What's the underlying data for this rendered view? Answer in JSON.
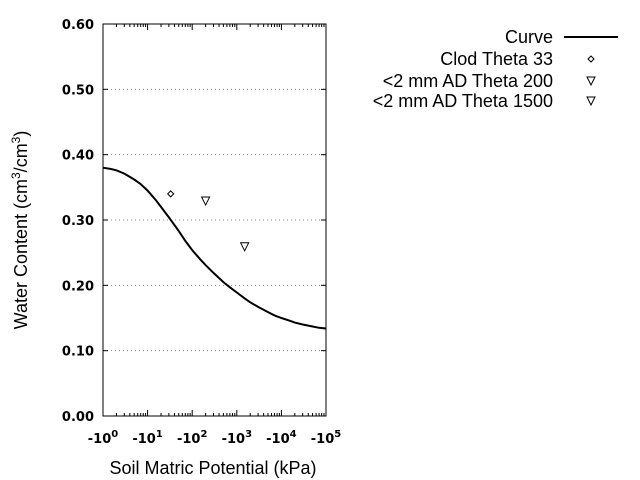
{
  "chart_data": {
    "type": "line",
    "xlabel": "Soil Matric Potential (kPa)",
    "ylabel_main": "Water Content (cm",
    "ylabel_sup1": "3",
    "ylabel_mid": "/cm",
    "ylabel_sup2": "3",
    "ylabel_end": ")",
    "x_scale": "log",
    "x_range": [
      1,
      100000
    ],
    "ylim": [
      0,
      0.6
    ],
    "grid": "horizontal dotted",
    "legend_position": "top-right",
    "y_ticks": [
      "0.00",
      "0.10",
      "0.20",
      "0.30",
      "0.40",
      "0.50",
      "0.60"
    ],
    "x_ticks": [
      {
        "base": "-10",
        "exp": "0",
        "value": 1
      },
      {
        "base": "-10",
        "exp": "1",
        "value": 10
      },
      {
        "base": "-10",
        "exp": "2",
        "value": 100
      },
      {
        "base": "-10",
        "exp": "3",
        "value": 1000
      },
      {
        "base": "-10",
        "exp": "4",
        "value": 10000
      },
      {
        "base": "-10",
        "exp": "5",
        "value": 100000
      }
    ],
    "series": [
      {
        "name": "Curve",
        "kind": "line",
        "x": [
          1,
          1.5,
          2,
          3,
          5,
          7,
          10,
          15,
          20,
          30,
          50,
          70,
          100,
          150,
          200,
          300,
          500,
          700,
          1000,
          1500,
          2000,
          3000,
          5000,
          7000,
          10000,
          15000,
          20000,
          30000,
          50000,
          70000,
          100000
        ],
        "y": [
          0.38,
          0.378,
          0.376,
          0.371,
          0.362,
          0.355,
          0.345,
          0.331,
          0.32,
          0.304,
          0.283,
          0.268,
          0.254,
          0.24,
          0.231,
          0.219,
          0.205,
          0.197,
          0.189,
          0.18,
          0.174,
          0.167,
          0.159,
          0.154,
          0.15,
          0.146,
          0.143,
          0.14,
          0.137,
          0.135,
          0.134
        ]
      },
      {
        "name": "Clod Theta 33",
        "kind": "marker",
        "marker": "diamond",
        "x": [
          33
        ],
        "y": [
          0.34
        ]
      },
      {
        "name": "<2 mm AD Theta 200",
        "kind": "marker",
        "marker": "triangle-down",
        "x": [
          200
        ],
        "y": [
          0.329
        ]
      },
      {
        "name": "<2 mm AD Theta 1500",
        "kind": "marker",
        "marker": "triangle-down",
        "x": [
          1500
        ],
        "y": [
          0.259
        ]
      }
    ]
  }
}
